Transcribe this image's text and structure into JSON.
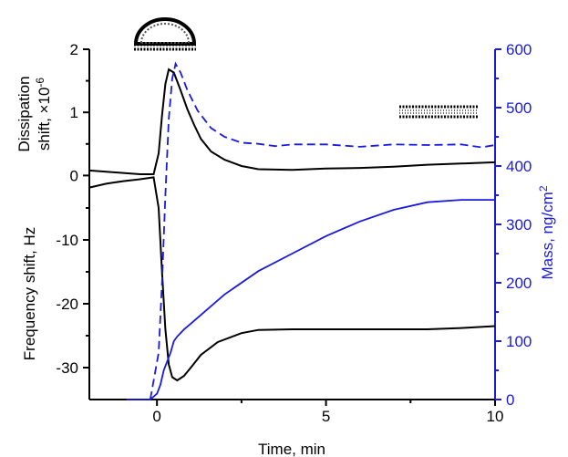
{
  "chart_data": {
    "type": "line",
    "xlabel": "Time, min",
    "ylabel_left_top_line1": "Dissipation",
    "ylabel_left_top_line2": "shift, ×10",
    "ylabel_left_top_exp": "-6",
    "ylabel_left_bottom": "Frequency shift, Hz",
    "ylabel_right": "Mass, ng/cm",
    "ylabel_right_exp": "2",
    "xlim": [
      -2,
      10
    ],
    "ylim_dissipation": [
      -0.5,
      2
    ],
    "ylim_frequency": [
      -35,
      0
    ],
    "ylim_mass": [
      0,
      600
    ],
    "x_ticks": [
      0,
      5,
      10
    ],
    "dissipation_ticks": [
      0,
      1,
      2
    ],
    "frequency_ticks": [
      -10,
      -20,
      -30
    ],
    "mass_ticks": [
      0,
      100,
      200,
      300,
      400,
      500,
      600
    ],
    "colors": {
      "black_series": "#000000",
      "mass_series": "#1a1adc",
      "axis_right": "#1a1adc"
    },
    "icons": [
      "vesicle-icon",
      "bilayer-icon"
    ],
    "series": [
      {
        "x": [
          -2,
          -1.5,
          -1,
          -0.5,
          -0.1,
          0.05,
          0.15,
          0.25,
          0.35,
          0.5,
          0.7,
          0.9,
          1.1,
          1.3,
          1.6,
          2.0,
          2.5,
          3,
          4,
          5,
          6,
          7,
          8,
          9,
          10
        ],
        "y": [
          0.08,
          0.06,
          0.04,
          0.02,
          0.02,
          0.35,
          0.95,
          1.45,
          1.68,
          1.63,
          1.35,
          1.05,
          0.8,
          0.58,
          0.38,
          0.25,
          0.15,
          0.1,
          0.09,
          0.11,
          0.12,
          0.14,
          0.17,
          0.19,
          0.21
        ]
      },
      {
        "x": [
          -2,
          -1.5,
          -1,
          -0.5,
          -0.1,
          0.05,
          0.15,
          0.25,
          0.35,
          0.45,
          0.6,
          0.8,
          1.0,
          1.3,
          1.8,
          2.5,
          3,
          4,
          5,
          6,
          7,
          8,
          9,
          10
        ],
        "y": [
          -1.8,
          -1.2,
          -0.8,
          -0.5,
          -0.2,
          -5,
          -15,
          -24,
          -29.5,
          -31.5,
          -32,
          -31.3,
          -30,
          -28,
          -26,
          -24.6,
          -24.1,
          -24,
          -24,
          -24,
          -24,
          -24,
          -23.8,
          -23.5
        ]
      },
      {
        "x": [
          -0.9,
          -0.5,
          -0.2,
          0.0,
          0.1,
          0.2,
          0.3,
          0.4,
          0.5,
          0.6,
          0.8,
          1.0,
          1.5,
          2,
          3,
          4,
          5,
          6,
          7,
          8,
          9,
          9.5,
          10
        ],
        "y": [
          0,
          0,
          0,
          10,
          25,
          50,
          65,
          80,
          100,
          108,
          120,
          130,
          155,
          180,
          220,
          250,
          280,
          305,
          325,
          338,
          342,
          342,
          342
        ]
      },
      {
        "x": [
          -0.2,
          0.05,
          0.15,
          0.25,
          0.35,
          0.45,
          0.55,
          0.7,
          0.9,
          1.2,
          1.6,
          2.0,
          2.5,
          3,
          3.5,
          4,
          5,
          6,
          7,
          8,
          9,
          9.6,
          10
        ],
        "y": [
          0,
          80,
          200,
          350,
          480,
          550,
          575,
          560,
          530,
          495,
          465,
          450,
          440,
          438,
          434,
          437,
          437,
          433,
          437,
          436,
          437,
          432,
          436
        ]
      }
    ]
  }
}
